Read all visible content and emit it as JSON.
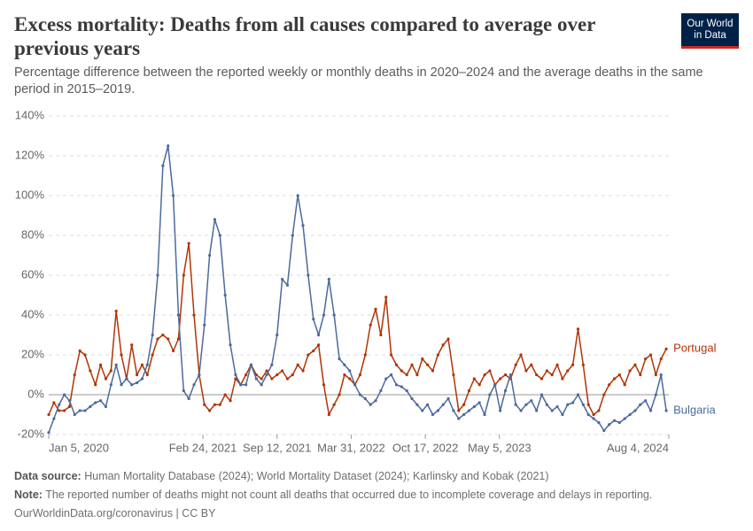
{
  "chart_data": {
    "type": "line",
    "title": "Excess mortality: Deaths from all causes compared to average over previous years",
    "subtitle": "Percentage difference between the reported weekly or monthly deaths in 2020–2024 and the average deaths in the same period in 2015–2019.",
    "logo": [
      "Our World",
      "in Data"
    ],
    "x": [
      "2020-01-05",
      "2020-01-19",
      "2020-02-02",
      "2020-02-16",
      "2020-03-01",
      "2020-03-15",
      "2020-03-29",
      "2020-04-12",
      "2020-04-26",
      "2020-05-10",
      "2020-05-24",
      "2020-06-07",
      "2020-06-21",
      "2020-07-05",
      "2020-07-19",
      "2020-08-02",
      "2020-08-16",
      "2020-08-30",
      "2020-09-13",
      "2020-09-27",
      "2020-10-11",
      "2020-10-25",
      "2020-11-08",
      "2020-11-22",
      "2020-12-06",
      "2020-12-20",
      "2021-01-03",
      "2021-01-17",
      "2021-01-31",
      "2021-02-14",
      "2021-02-28",
      "2021-03-14",
      "2021-03-28",
      "2021-04-11",
      "2021-04-25",
      "2021-05-09",
      "2021-05-23",
      "2021-06-06",
      "2021-06-20",
      "2021-07-04",
      "2021-07-18",
      "2021-08-01",
      "2021-08-15",
      "2021-08-29",
      "2021-09-12",
      "2021-09-26",
      "2021-10-10",
      "2021-10-24",
      "2021-11-07",
      "2021-11-21",
      "2021-12-05",
      "2021-12-19",
      "2022-01-02",
      "2022-01-16",
      "2022-01-30",
      "2022-02-13",
      "2022-02-27",
      "2022-03-13",
      "2022-03-27",
      "2022-04-10",
      "2022-04-24",
      "2022-05-08",
      "2022-05-22",
      "2022-06-05",
      "2022-06-19",
      "2022-07-03",
      "2022-07-17",
      "2022-07-31",
      "2022-08-14",
      "2022-08-28",
      "2022-09-11",
      "2022-09-25",
      "2022-10-09",
      "2022-10-23",
      "2022-11-06",
      "2022-11-20",
      "2022-12-04",
      "2022-12-18",
      "2023-01-01",
      "2023-01-15",
      "2023-01-29",
      "2023-02-12",
      "2023-02-26",
      "2023-03-12",
      "2023-03-26",
      "2023-04-09",
      "2023-04-23",
      "2023-05-07",
      "2023-05-21",
      "2023-06-04",
      "2023-06-18",
      "2023-07-02",
      "2023-07-16",
      "2023-07-30",
      "2023-08-13",
      "2023-08-27",
      "2023-09-10",
      "2023-09-24",
      "2023-10-08",
      "2023-10-22",
      "2023-11-05",
      "2023-11-19",
      "2023-12-03",
      "2023-12-17",
      "2023-12-31",
      "2024-01-14",
      "2024-01-28",
      "2024-02-11",
      "2024-02-25",
      "2024-03-10",
      "2024-03-24",
      "2024-04-07",
      "2024-04-21",
      "2024-05-05",
      "2024-05-19",
      "2024-06-02",
      "2024-06-16",
      "2024-06-30",
      "2024-07-14",
      "2024-07-28"
    ],
    "xlim": [
      "2020-01-05",
      "2024-08-04"
    ],
    "xticks": [
      {
        "value": "2020-01-05",
        "label": "Jan 5, 2020"
      },
      {
        "value": "2021-02-24",
        "label": "Feb 24, 2021"
      },
      {
        "value": "2021-09-12",
        "label": "Sep 12, 2021"
      },
      {
        "value": "2022-03-31",
        "label": "Mar 31, 2022"
      },
      {
        "value": "2022-10-17",
        "label": "Oct 17, 2022"
      },
      {
        "value": "2023-05-05",
        "label": "May 5, 2023"
      },
      {
        "value": "2024-08-04",
        "label": "Aug 4, 2024"
      }
    ],
    "ylim": [
      -20,
      140
    ],
    "yticks": [
      {
        "value": -20,
        "label": "-20%"
      },
      {
        "value": 0,
        "label": "0%"
      },
      {
        "value": 20,
        "label": "20%"
      },
      {
        "value": 40,
        "label": "40%"
      },
      {
        "value": 60,
        "label": "60%"
      },
      {
        "value": 80,
        "label": "80%"
      },
      {
        "value": 100,
        "label": "100%"
      },
      {
        "value": 120,
        "label": "120%"
      },
      {
        "value": 140,
        "label": "140%"
      }
    ],
    "grid": true,
    "series": [
      {
        "name": "Portugal",
        "color": "#b13507",
        "values": [
          -10,
          -4,
          -8,
          -8,
          -6,
          10,
          22,
          20,
          12,
          5,
          15,
          8,
          12,
          42,
          20,
          8,
          25,
          10,
          15,
          10,
          20,
          28,
          30,
          28,
          22,
          28,
          60,
          76,
          40,
          10,
          -5,
          -8,
          -5,
          -5,
          0,
          -3,
          8,
          5,
          10,
          15,
          10,
          8,
          12,
          8,
          10,
          12,
          8,
          10,
          15,
          12,
          20,
          22,
          25,
          5,
          -10,
          -5,
          0,
          10,
          8,
          5,
          10,
          20,
          35,
          43,
          30,
          49,
          20,
          15,
          12,
          10,
          15,
          10,
          18,
          15,
          12,
          20,
          25,
          28,
          10,
          -8,
          -5,
          2,
          8,
          5,
          10,
          12,
          5,
          8,
          10,
          8,
          15,
          20,
          12,
          15,
          10,
          8,
          12,
          10,
          15,
          8,
          12,
          15,
          33,
          15,
          -5,
          -10,
          -8,
          0,
          5,
          8,
          10,
          5,
          12,
          15,
          10,
          18,
          20,
          10,
          18,
          23
        ]
      },
      {
        "name": "Bulgaria",
        "color": "#4c6a9c",
        "values": [
          -19,
          -12,
          -5,
          0,
          -3,
          -10,
          -8,
          -8,
          -6,
          -4,
          -3,
          -6,
          5,
          15,
          5,
          8,
          5,
          6,
          8,
          15,
          30,
          60,
          115,
          125,
          100,
          40,
          2,
          -2,
          5,
          10,
          35,
          70,
          88,
          80,
          50,
          25,
          10,
          5,
          5,
          15,
          8,
          5,
          10,
          15,
          30,
          58,
          55,
          80,
          100,
          85,
          60,
          38,
          30,
          40,
          58,
          40,
          18,
          15,
          12,
          5,
          0,
          -2,
          -5,
          -3,
          2,
          8,
          10,
          5,
          4,
          2,
          -2,
          -5,
          -8,
          -5,
          -10,
          -8,
          -5,
          -2,
          -8,
          -12,
          -10,
          -8,
          -6,
          -4,
          -10,
          0,
          5,
          -8,
          2,
          10,
          -5,
          -8,
          -5,
          -3,
          -8,
          0,
          -5,
          -8,
          -6,
          -10,
          -5,
          -4,
          0,
          -5,
          -10,
          -12,
          -14,
          -18,
          -15,
          -13,
          -14,
          -12,
          -10,
          -8,
          -5,
          -3,
          -8,
          0,
          10,
          -8
        ]
      }
    ],
    "source_label": "Data source:",
    "source": "Human Mortality Database (2024); World Mortality Dataset (2024); Karlinsky and Kobak (2021)",
    "note_label": "Note:",
    "note": "The reported number of deaths might not count all deaths that occurred due to incomplete coverage and delays in reporting.",
    "footer_link": "OurWorldinData.org/coronavirus | CC BY"
  }
}
